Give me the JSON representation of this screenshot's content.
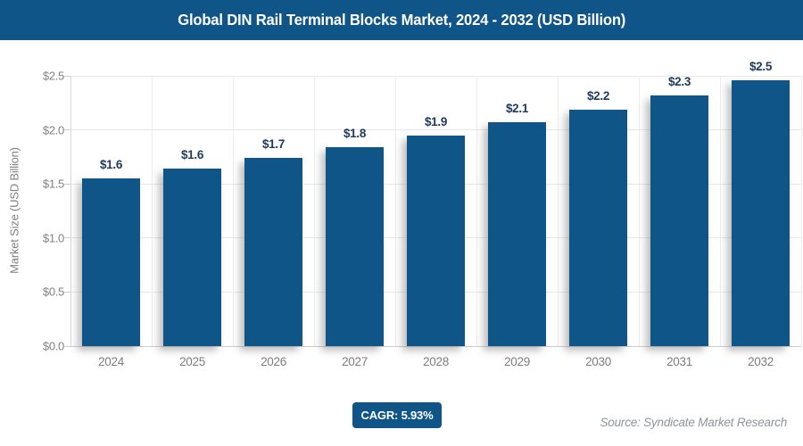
{
  "header": {
    "title": "Global DIN Rail Terminal Blocks Market, 2024 - 2032 (USD Billion)"
  },
  "chart_data": {
    "type": "bar",
    "title": "Global DIN Rail Terminal Blocks Market, 2024 - 2032 (USD Billion)",
    "categories": [
      "2024",
      "2025",
      "2026",
      "2027",
      "2028",
      "2029",
      "2030",
      "2031",
      "2032"
    ],
    "values": [
      1.55,
      1.64,
      1.74,
      1.84,
      1.95,
      2.07,
      2.19,
      2.32,
      2.46
    ],
    "value_labels": [
      "$1.6",
      "$1.6",
      "$1.7",
      "$1.8",
      "$1.9",
      "$2.1",
      "$2.2",
      "$2.3",
      "$2.5"
    ],
    "xlabel": "",
    "ylabel": "Market Size (USD Billion)",
    "yticks": [
      0,
      0.5,
      1.0,
      1.5,
      2.0,
      2.5
    ],
    "ytick_labels": [
      "$0.0",
      "$0.5",
      "$1.0",
      "$1.5",
      "$2.0",
      "$2.5"
    ],
    "ylim": [
      0,
      2.5
    ],
    "grid": true,
    "legend": false,
    "bar_color": "#105587"
  },
  "footer": {
    "cagr_badge": "CAGR: 5.93%",
    "source": "Source: Syndicate Market Research"
  },
  "colors": {
    "header_bg": "#105587",
    "bar": "#105587",
    "value_label_text": "#1e3a5c",
    "axis_text": "#838383",
    "gridline": "#e8e8e8",
    "source_text": "#8e959b"
  }
}
